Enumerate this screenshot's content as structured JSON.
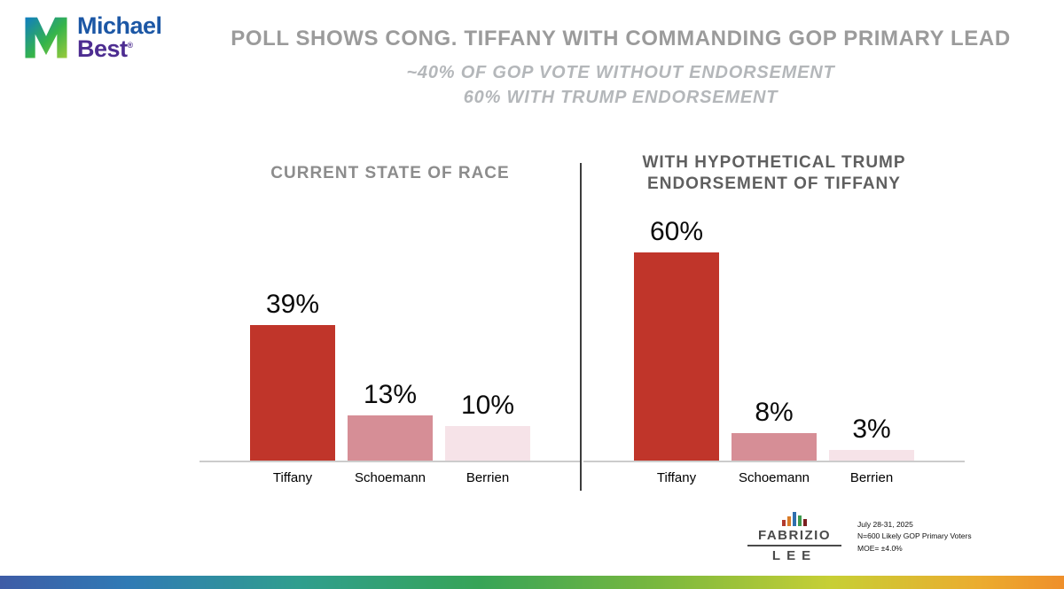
{
  "brand": {
    "line1": "Michael",
    "line2": "Best",
    "registered": "®"
  },
  "header": {
    "title": "POLL SHOWS CONG. TIFFANY WITH COMMANDING GOP PRIMARY LEAD",
    "subtitle_line1": "~40% OF GOP VOTE WITHOUT ENDORSEMENT",
    "subtitle_line2": "60% WITH TRUMP ENDORSEMENT"
  },
  "chart_data": [
    {
      "type": "bar",
      "title": "CURRENT STATE OF RACE",
      "categories": [
        "Tiffany",
        "Schoemann",
        "Berrien"
      ],
      "values": [
        39,
        13,
        10
      ],
      "value_labels": [
        "39%",
        "13%",
        "10%"
      ],
      "colors": [
        "#c0352a",
        "#d68e96",
        "#f6e3e8"
      ],
      "xlabel": "",
      "ylabel": "",
      "ylim": [
        0,
        65
      ],
      "grid": false,
      "legend": "none"
    },
    {
      "type": "bar",
      "title": "WITH HYPOTHETICAL TRUMP ENDORSEMENT OF TIFFANY",
      "categories": [
        "Tiffany",
        "Schoemann",
        "Berrien"
      ],
      "values": [
        60,
        8,
        3
      ],
      "value_labels": [
        "60%",
        "8%",
        "3%"
      ],
      "colors": [
        "#c0352a",
        "#d68e96",
        "#f6e3e8"
      ],
      "xlabel": "",
      "ylabel": "",
      "ylim": [
        0,
        65
      ],
      "grid": false,
      "legend": "none"
    }
  ],
  "footer": {
    "logo_line1": "FABRIZIO",
    "logo_line2": "LEE",
    "note_line1": "July 28-31, 2025",
    "note_line2": "N=600 Likely GOP Primary Voters",
    "note_line3": "MOE= ±4.0%"
  },
  "theme": {
    "title_gray": "#9b9b9b",
    "subtitle_gray": "#b4b7ba",
    "bar_red": "#c0352a",
    "bar_rose": "#d68e96",
    "bar_pale_pink": "#f6e3e8",
    "brand_blue": "#1c57a5",
    "brand_purple": "#4d2d91"
  }
}
